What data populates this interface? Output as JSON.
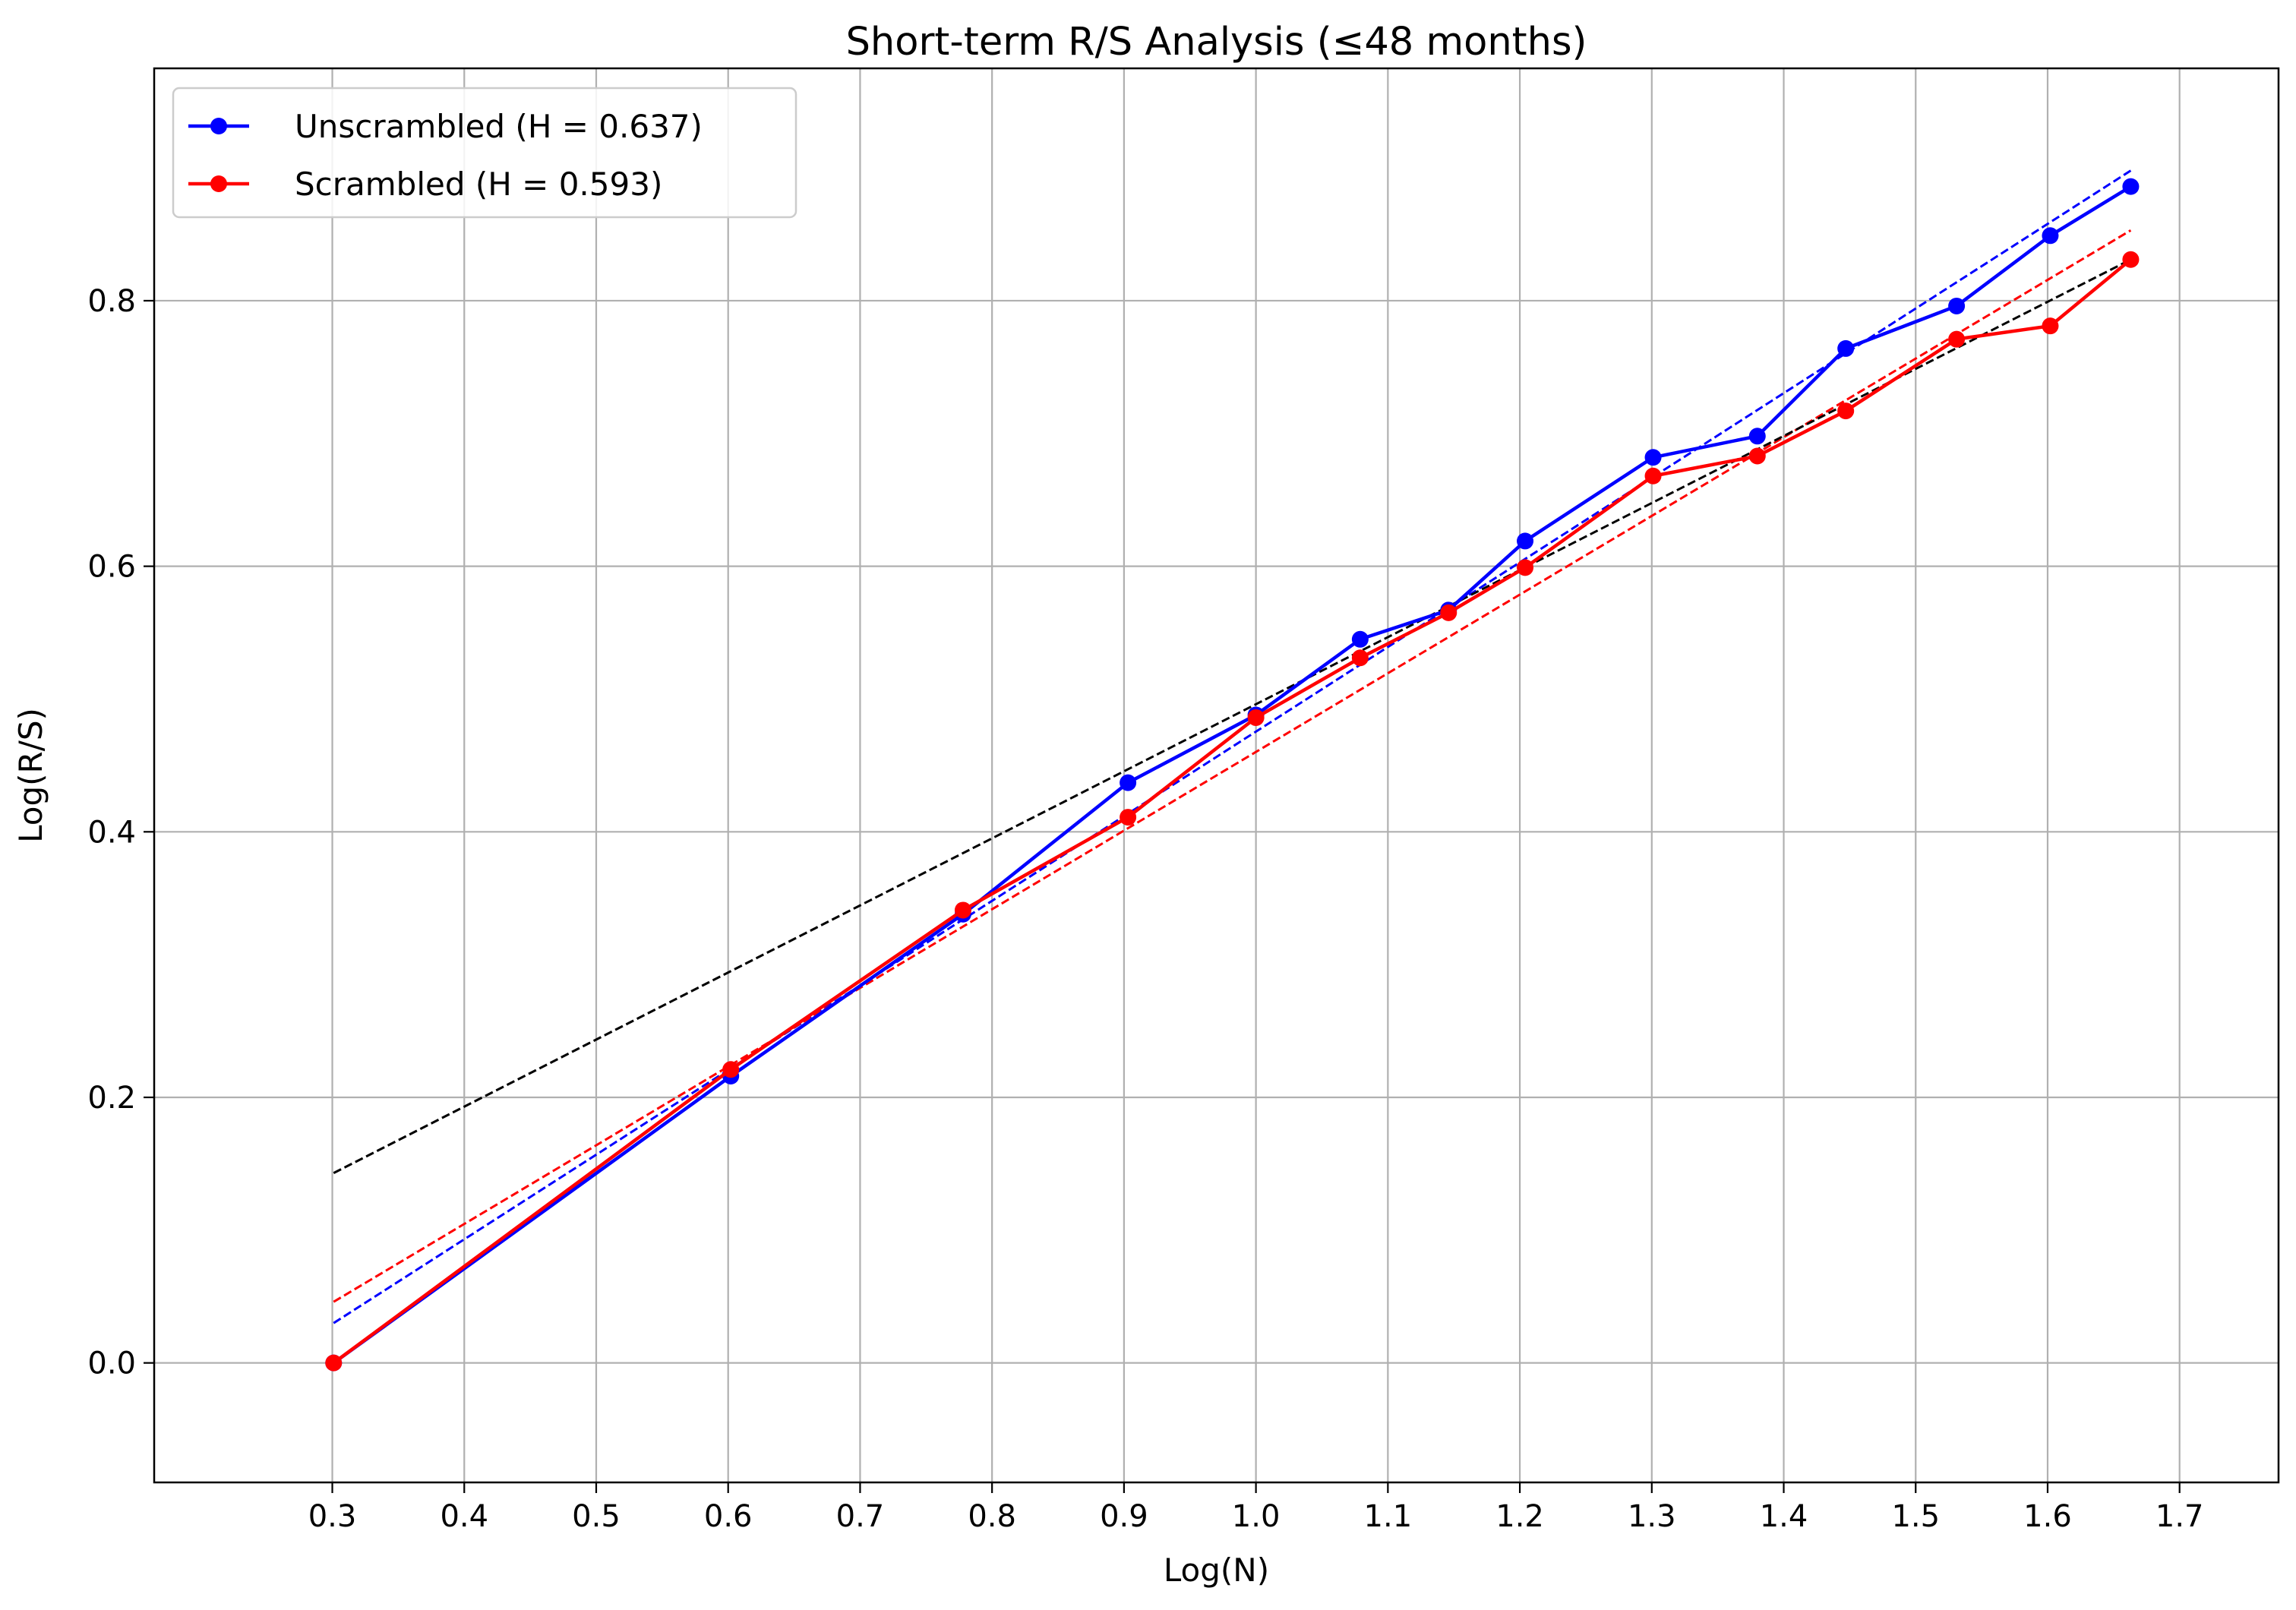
{
  "chart_data": {
    "type": "line",
    "title": "Short-term R/S Analysis (≤48 months)",
    "xlabel": "Log(N)",
    "ylabel": "Log(R/S)",
    "xlim": [
      0.165,
      1.775
    ],
    "ylim": [
      -0.09,
      0.975
    ],
    "xticks": [
      "0.3",
      "0.4",
      "0.5",
      "0.6",
      "0.7",
      "0.8",
      "0.9",
      "1.0",
      "1.1",
      "1.2",
      "1.3",
      "1.4",
      "1.5",
      "1.6",
      "1.7"
    ],
    "yticks": [
      "0.0",
      "0.2",
      "0.4",
      "0.6",
      "0.8"
    ],
    "grid": true,
    "legend_position": "top-left",
    "x": [
      0.301,
      0.602,
      0.778,
      0.903,
      1.0,
      1.079,
      1.146,
      1.204,
      1.301,
      1.38,
      1.447,
      1.531,
      1.602,
      1.663
    ],
    "series": [
      {
        "name": "Unscrambled (H = 0.637)",
        "color": "#0000ff",
        "values": [
          0.0,
          0.216,
          0.338,
          0.437,
          0.488,
          0.545,
          0.567,
          0.619,
          0.682,
          0.698,
          0.764,
          0.796,
          0.849,
          0.886
        ]
      },
      {
        "name": "Scrambled (H = 0.593)",
        "color": "#ff0000",
        "values": [
          0.0,
          0.221,
          0.341,
          0.411,
          0.486,
          0.531,
          0.565,
          0.599,
          0.668,
          0.683,
          0.717,
          0.771,
          0.781,
          0.831
        ]
      }
    ],
    "fit_lines": [
      {
        "color": "#0000ff",
        "x": [
          0.301,
          1.663
        ],
        "y": [
          0.03,
          0.898
        ]
      },
      {
        "color": "#ff0000",
        "x": [
          0.301,
          1.663
        ],
        "y": [
          0.046,
          0.853
        ]
      },
      {
        "color": "#000000",
        "x": [
          0.301,
          1.663
        ],
        "y": [
          0.143,
          0.831
        ]
      }
    ]
  }
}
